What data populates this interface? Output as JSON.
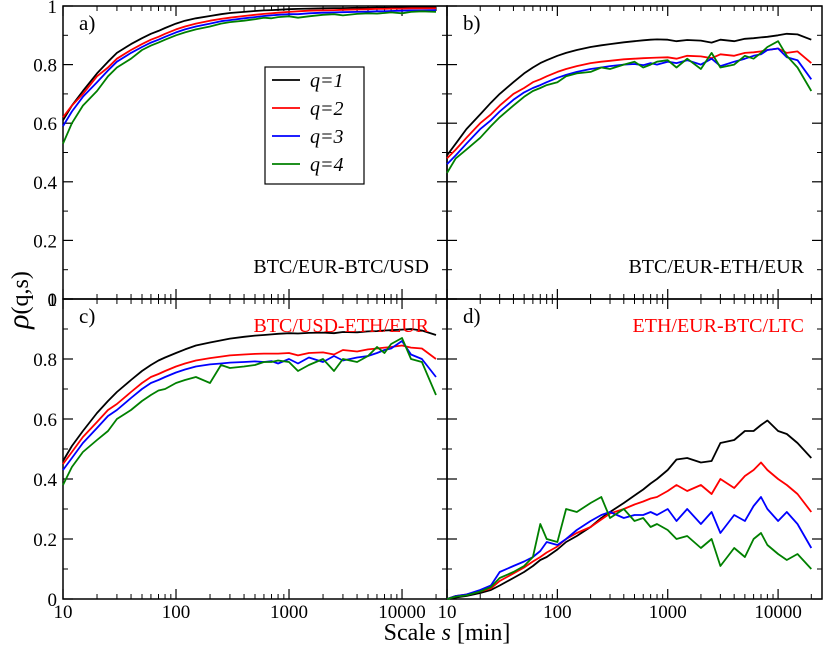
{
  "figure": {
    "ylabel_rho": "ρ",
    "ylabel_args": "(q,s)",
    "xlabel_prefix": "Scale ",
    "xlabel_var": "s",
    "xlabel_suffix": " [min]"
  },
  "legend": {
    "entries": [
      {
        "label": "q=1",
        "color": "#000000"
      },
      {
        "label": "q=2",
        "color": "#ff0000"
      },
      {
        "label": "q=3",
        "color": "#0000ff"
      },
      {
        "label": "q=4",
        "color": "#008000"
      }
    ]
  },
  "chart_data": [
    {
      "type": "line",
      "panel_label": "a)",
      "pair_label": "BTC/EUR-BTC/USD",
      "pair_color": "#000000",
      "x_scale": "log",
      "xlim": [
        10,
        25000
      ],
      "ylim": [
        0,
        1
      ],
      "x_ticks": [
        10,
        100,
        1000,
        10000
      ],
      "y_ticks": [
        0,
        0.2,
        0.4,
        0.6,
        0.8,
        1
      ],
      "x": [
        10,
        12,
        15,
        20,
        25,
        30,
        40,
        50,
        60,
        70,
        80,
        100,
        120,
        150,
        200,
        250,
        300,
        400,
        500,
        600,
        700,
        800,
        1000,
        1200,
        1500,
        2000,
        2500,
        3000,
        4000,
        5000,
        6000,
        7000,
        8000,
        10000,
        12000,
        15000,
        20000
      ],
      "series": [
        {
          "name": "q=1",
          "color": "#000000",
          "values": [
            0.61,
            0.66,
            0.71,
            0.77,
            0.81,
            0.84,
            0.87,
            0.89,
            0.905,
            0.915,
            0.925,
            0.94,
            0.95,
            0.958,
            0.966,
            0.972,
            0.976,
            0.98,
            0.983,
            0.985,
            0.986,
            0.987,
            0.989,
            0.99,
            0.991,
            0.992,
            0.993,
            0.993,
            0.994,
            0.994,
            0.995,
            0.995,
            0.995,
            0.996,
            0.996,
            0.996,
            0.996
          ]
        },
        {
          "name": "q=2",
          "color": "#ff0000",
          "values": [
            0.62,
            0.66,
            0.7,
            0.76,
            0.79,
            0.82,
            0.85,
            0.87,
            0.885,
            0.895,
            0.905,
            0.92,
            0.93,
            0.94,
            0.95,
            0.956,
            0.96,
            0.966,
            0.97,
            0.973,
            0.975,
            0.977,
            0.98,
            0.982,
            0.984,
            0.985,
            0.986,
            0.987,
            0.988,
            0.989,
            0.99,
            0.99,
            0.991,
            0.991,
            0.992,
            0.992,
            0.992
          ]
        },
        {
          "name": "q=3",
          "color": "#0000ff",
          "values": [
            0.59,
            0.64,
            0.69,
            0.74,
            0.78,
            0.81,
            0.84,
            0.86,
            0.875,
            0.885,
            0.895,
            0.91,
            0.92,
            0.93,
            0.94,
            0.948,
            0.952,
            0.958,
            0.962,
            0.966,
            0.968,
            0.97,
            0.972,
            0.972,
            0.975,
            0.977,
            0.978,
            0.979,
            0.98,
            0.981,
            0.982,
            0.982,
            0.983,
            0.984,
            0.985,
            0.985,
            0.986
          ]
        },
        {
          "name": "q=4",
          "color": "#008000",
          "values": [
            0.53,
            0.6,
            0.66,
            0.71,
            0.76,
            0.79,
            0.82,
            0.85,
            0.865,
            0.875,
            0.885,
            0.9,
            0.91,
            0.92,
            0.93,
            0.94,
            0.945,
            0.95,
            0.955,
            0.96,
            0.958,
            0.962,
            0.965,
            0.96,
            0.965,
            0.97,
            0.972,
            0.968,
            0.973,
            0.975,
            0.974,
            0.976,
            0.978,
            0.975,
            0.98,
            0.982,
            0.98
          ]
        }
      ]
    },
    {
      "type": "line",
      "panel_label": "b)",
      "pair_label": "BTC/EUR-ETH/EUR",
      "pair_color": "#000000",
      "x_scale": "log",
      "xlim": [
        10,
        25000
      ],
      "ylim": [
        0,
        1
      ],
      "x_ticks": [
        10,
        100,
        1000,
        10000
      ],
      "y_ticks": [
        0,
        0.2,
        0.4,
        0.6,
        0.8,
        1
      ],
      "x": [
        10,
        12,
        15,
        20,
        25,
        30,
        40,
        50,
        60,
        70,
        80,
        100,
        120,
        150,
        200,
        250,
        300,
        400,
        500,
        600,
        700,
        800,
        1000,
        1200,
        1500,
        2000,
        2500,
        3000,
        4000,
        5000,
        6000,
        7000,
        8000,
        10000,
        12000,
        15000,
        20000
      ],
      "series": [
        {
          "name": "q=1",
          "color": "#000000",
          "values": [
            0.49,
            0.53,
            0.58,
            0.63,
            0.67,
            0.7,
            0.74,
            0.77,
            0.79,
            0.805,
            0.815,
            0.83,
            0.84,
            0.85,
            0.86,
            0.866,
            0.87,
            0.876,
            0.88,
            0.883,
            0.885,
            0.886,
            0.885,
            0.88,
            0.884,
            0.882,
            0.875,
            0.885,
            0.88,
            0.888,
            0.89,
            0.893,
            0.895,
            0.9,
            0.905,
            0.903,
            0.885
          ]
        },
        {
          "name": "q=2",
          "color": "#ff0000",
          "values": [
            0.48,
            0.51,
            0.55,
            0.6,
            0.63,
            0.66,
            0.7,
            0.72,
            0.74,
            0.75,
            0.76,
            0.775,
            0.785,
            0.795,
            0.805,
            0.81,
            0.813,
            0.818,
            0.82,
            0.822,
            0.823,
            0.824,
            0.825,
            0.82,
            0.83,
            0.828,
            0.822,
            0.835,
            0.83,
            0.84,
            0.842,
            0.845,
            0.85,
            0.855,
            0.84,
            0.845,
            0.805
          ]
        },
        {
          "name": "q=3",
          "color": "#0000ff",
          "values": [
            0.46,
            0.49,
            0.53,
            0.58,
            0.61,
            0.64,
            0.68,
            0.705,
            0.72,
            0.73,
            0.74,
            0.755,
            0.765,
            0.775,
            0.785,
            0.79,
            0.795,
            0.8,
            0.802,
            0.798,
            0.805,
            0.8,
            0.81,
            0.805,
            0.815,
            0.8,
            0.82,
            0.795,
            0.81,
            0.82,
            0.83,
            0.835,
            0.85,
            0.855,
            0.825,
            0.815,
            0.75
          ]
        },
        {
          "name": "q=4",
          "color": "#008000",
          "values": [
            0.43,
            0.48,
            0.51,
            0.55,
            0.59,
            0.62,
            0.66,
            0.69,
            0.71,
            0.72,
            0.73,
            0.74,
            0.76,
            0.77,
            0.775,
            0.79,
            0.785,
            0.8,
            0.81,
            0.79,
            0.8,
            0.81,
            0.815,
            0.79,
            0.82,
            0.785,
            0.84,
            0.79,
            0.8,
            0.83,
            0.82,
            0.84,
            0.86,
            0.88,
            0.83,
            0.79,
            0.71
          ]
        }
      ]
    },
    {
      "type": "line",
      "panel_label": "c)",
      "pair_label": "BTC/USD-ETH/EUR",
      "pair_color": "#ff0000",
      "x_scale": "log",
      "xlim": [
        10,
        25000
      ],
      "ylim": [
        0,
        1
      ],
      "x_ticks": [
        10,
        100,
        1000,
        10000
      ],
      "y_ticks": [
        0,
        0.2,
        0.4,
        0.6,
        0.8,
        1
      ],
      "x": [
        10,
        12,
        15,
        20,
        25,
        30,
        40,
        50,
        60,
        70,
        80,
        100,
        120,
        150,
        200,
        250,
        300,
        400,
        500,
        600,
        700,
        800,
        1000,
        1200,
        1500,
        2000,
        2500,
        3000,
        4000,
        5000,
        6000,
        7000,
        8000,
        10000,
        12000,
        15000,
        20000
      ],
      "series": [
        {
          "name": "q=1",
          "color": "#000000",
          "values": [
            0.46,
            0.51,
            0.56,
            0.62,
            0.66,
            0.69,
            0.73,
            0.76,
            0.78,
            0.795,
            0.805,
            0.82,
            0.832,
            0.845,
            0.855,
            0.862,
            0.868,
            0.874,
            0.878,
            0.88,
            0.882,
            0.884,
            0.886,
            0.885,
            0.887,
            0.888,
            0.886,
            0.89,
            0.889,
            0.892,
            0.893,
            0.895,
            0.896,
            0.898,
            0.9,
            0.895,
            0.88
          ]
        },
        {
          "name": "q=2",
          "color": "#ff0000",
          "values": [
            0.45,
            0.49,
            0.54,
            0.59,
            0.63,
            0.65,
            0.69,
            0.72,
            0.74,
            0.75,
            0.76,
            0.775,
            0.785,
            0.795,
            0.803,
            0.808,
            0.812,
            0.815,
            0.817,
            0.818,
            0.818,
            0.818,
            0.82,
            0.812,
            0.82,
            0.822,
            0.815,
            0.83,
            0.825,
            0.832,
            0.835,
            0.838,
            0.84,
            0.845,
            0.838,
            0.835,
            0.8
          ]
        },
        {
          "name": "q=3",
          "color": "#0000ff",
          "values": [
            0.43,
            0.47,
            0.52,
            0.57,
            0.61,
            0.63,
            0.67,
            0.7,
            0.72,
            0.73,
            0.74,
            0.755,
            0.765,
            0.775,
            0.782,
            0.785,
            0.788,
            0.79,
            0.792,
            0.79,
            0.793,
            0.785,
            0.8,
            0.785,
            0.805,
            0.79,
            0.81,
            0.795,
            0.805,
            0.81,
            0.82,
            0.83,
            0.835,
            0.86,
            0.815,
            0.8,
            0.74
          ]
        },
        {
          "name": "q=4",
          "color": "#008000",
          "values": [
            0.38,
            0.44,
            0.49,
            0.53,
            0.56,
            0.6,
            0.63,
            0.66,
            0.68,
            0.695,
            0.7,
            0.72,
            0.73,
            0.74,
            0.72,
            0.78,
            0.77,
            0.775,
            0.78,
            0.79,
            0.79,
            0.795,
            0.79,
            0.76,
            0.78,
            0.8,
            0.76,
            0.8,
            0.79,
            0.81,
            0.84,
            0.82,
            0.85,
            0.87,
            0.8,
            0.79,
            0.68
          ]
        }
      ]
    },
    {
      "type": "line",
      "panel_label": "d)",
      "pair_label": "ETH/EUR-BTC/LTC",
      "pair_color": "#ff0000",
      "x_scale": "log",
      "xlim": [
        10,
        25000
      ],
      "ylim": [
        0,
        1
      ],
      "x_ticks": [
        10,
        100,
        1000,
        10000
      ],
      "y_ticks": [
        0,
        0.2,
        0.4,
        0.6,
        0.8,
        1
      ],
      "x": [
        10,
        12,
        15,
        20,
        25,
        30,
        40,
        50,
        60,
        70,
        80,
        100,
        120,
        150,
        200,
        250,
        300,
        400,
        500,
        600,
        700,
        800,
        1000,
        1200,
        1500,
        2000,
        2500,
        3000,
        4000,
        5000,
        6000,
        7000,
        8000,
        10000,
        12000,
        15000,
        20000
      ],
      "series": [
        {
          "name": "q=1",
          "color": "#000000",
          "values": [
            0.0,
            0.005,
            0.01,
            0.02,
            0.03,
            0.045,
            0.07,
            0.09,
            0.11,
            0.13,
            0.14,
            0.165,
            0.19,
            0.21,
            0.24,
            0.27,
            0.29,
            0.32,
            0.345,
            0.365,
            0.385,
            0.4,
            0.43,
            0.465,
            0.47,
            0.455,
            0.46,
            0.52,
            0.53,
            0.56,
            0.56,
            0.58,
            0.595,
            0.56,
            0.55,
            0.52,
            0.47
          ]
        },
        {
          "name": "q=2",
          "color": "#ff0000",
          "values": [
            0.0,
            0.01,
            0.015,
            0.025,
            0.035,
            0.06,
            0.085,
            0.105,
            0.125,
            0.14,
            0.155,
            0.175,
            0.2,
            0.22,
            0.24,
            0.265,
            0.285,
            0.3,
            0.315,
            0.325,
            0.335,
            0.34,
            0.36,
            0.38,
            0.36,
            0.38,
            0.35,
            0.4,
            0.37,
            0.41,
            0.43,
            0.455,
            0.43,
            0.4,
            0.38,
            0.35,
            0.29
          ]
        },
        {
          "name": "q=3",
          "color": "#0000ff",
          "values": [
            0.0,
            0.01,
            0.015,
            0.03,
            0.045,
            0.09,
            0.11,
            0.125,
            0.14,
            0.16,
            0.19,
            0.18,
            0.2,
            0.23,
            0.26,
            0.28,
            0.29,
            0.27,
            0.28,
            0.28,
            0.29,
            0.28,
            0.3,
            0.26,
            0.3,
            0.25,
            0.29,
            0.22,
            0.28,
            0.26,
            0.31,
            0.34,
            0.3,
            0.26,
            0.29,
            0.25,
            0.17
          ]
        },
        {
          "name": "q=4",
          "color": "#008000",
          "values": [
            0.0,
            0.008,
            0.012,
            0.025,
            0.04,
            0.07,
            0.09,
            0.11,
            0.14,
            0.25,
            0.2,
            0.19,
            0.3,
            0.29,
            0.32,
            0.34,
            0.27,
            0.3,
            0.26,
            0.27,
            0.24,
            0.25,
            0.23,
            0.2,
            0.21,
            0.17,
            0.2,
            0.11,
            0.17,
            0.14,
            0.2,
            0.22,
            0.18,
            0.15,
            0.13,
            0.15,
            0.1
          ]
        }
      ]
    }
  ]
}
